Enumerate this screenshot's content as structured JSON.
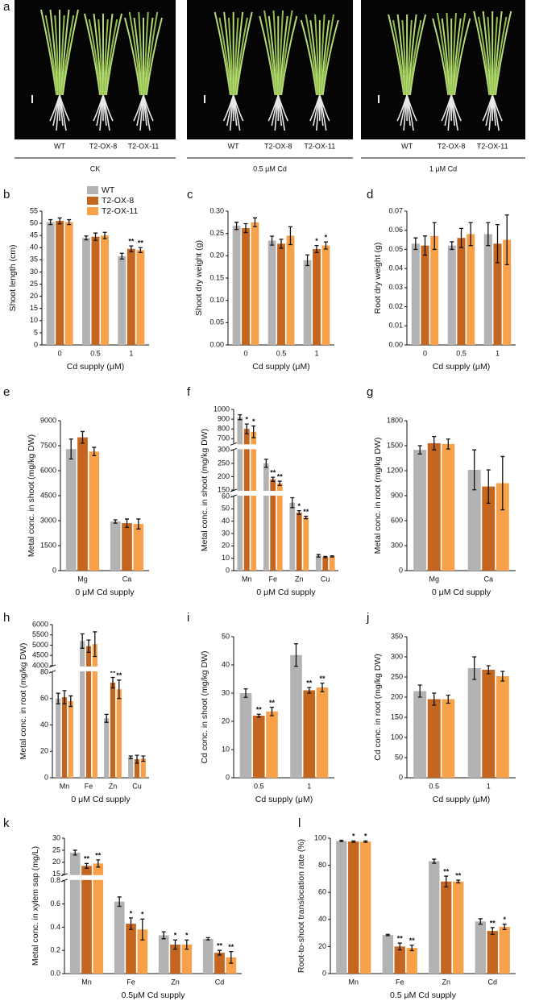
{
  "panel_a": {
    "label": "a",
    "groups": [
      {
        "label": "CK",
        "genotypes": [
          "WT",
          "T2-OX-8",
          "T2-OX-11"
        ]
      },
      {
        "label": "0.5 μM Cd",
        "genotypes": [
          "WT",
          "T2-OX-8",
          "T2-OX-11"
        ]
      },
      {
        "label": "1 μM Cd",
        "genotypes": [
          "WT",
          "T2-OX-8",
          "T2-OX-11"
        ]
      }
    ]
  },
  "chart_data": [
    {
      "panel": "b",
      "type": "bar",
      "ylabel": "Shoot length (cm)",
      "xlabel": "Cd supply (μM)",
      "categories": [
        "0",
        "0.5",
        "1"
      ],
      "legend": true,
      "series": [
        {
          "name": "WT",
          "color": "#b3b3b3",
          "values": [
            50.5,
            44,
            36.5
          ],
          "errors": [
            1,
            0.8,
            1.2
          ]
        },
        {
          "name": "T2-OX-8",
          "color": "#c4661f",
          "values": [
            51,
            44.5,
            39.5
          ],
          "errors": [
            1.2,
            1.5,
            1.2
          ],
          "stars": [
            null,
            null,
            "**"
          ]
        },
        {
          "name": "T2-OX-11",
          "color": "#f7a24b",
          "values": [
            50.5,
            45,
            39
          ],
          "errors": [
            1,
            1.3,
            1
          ],
          "stars": [
            null,
            null,
            "**"
          ]
        }
      ],
      "ylim": [
        0,
        55
      ],
      "yticks": [
        0,
        5,
        10,
        15,
        20,
        25,
        30,
        35,
        40,
        45,
        50,
        55
      ]
    },
    {
      "panel": "c",
      "type": "bar",
      "ylabel": "Shoot dry weight (g)",
      "xlabel": "Cd supply (μM)",
      "categories": [
        "0",
        "0.5",
        "1"
      ],
      "series": [
        {
          "color": "#b3b3b3",
          "values": [
            0.267,
            0.234,
            0.19
          ],
          "errors": [
            0.008,
            0.01,
            0.012
          ]
        },
        {
          "color": "#c4661f",
          "values": [
            0.262,
            0.227,
            0.215
          ],
          "errors": [
            0.01,
            0.01,
            0.008
          ],
          "stars": [
            null,
            null,
            "*"
          ]
        },
        {
          "color": "#f7a24b",
          "values": [
            0.275,
            0.245,
            0.223
          ],
          "errors": [
            0.01,
            0.02,
            0.008
          ],
          "stars": [
            null,
            null,
            "*"
          ]
        }
      ],
      "ylim": [
        0,
        0.3
      ],
      "yticks": [
        {
          "value": 0,
          "label": "0.00"
        },
        {
          "value": 0.05,
          "label": "0.05"
        },
        {
          "value": 0.1,
          "label": "0.10"
        },
        {
          "value": 0.15,
          "label": "0.15"
        },
        {
          "value": 0.2,
          "label": "0.20"
        },
        {
          "value": 0.25,
          "label": "0.25"
        },
        {
          "value": 0.3,
          "label": "0.30"
        }
      ]
    },
    {
      "panel": "d",
      "type": "bar",
      "ylabel": "Root dry weight (g)",
      "xlabel": "Cd supply (μM)",
      "categories": [
        "0",
        "0.5",
        "1"
      ],
      "series": [
        {
          "color": "#b3b3b3",
          "values": [
            0.053,
            0.052,
            0.058
          ],
          "errors": [
            0.003,
            0.002,
            0.006
          ]
        },
        {
          "color": "#c4661f",
          "values": [
            0.052,
            0.056,
            0.053
          ],
          "errors": [
            0.005,
            0.005,
            0.01
          ]
        },
        {
          "color": "#f7a24b",
          "values": [
            0.057,
            0.058,
            0.055
          ],
          "errors": [
            0.007,
            0.006,
            0.013
          ]
        }
      ],
      "ylim": [
        0,
        0.07
      ],
      "yticks": [
        {
          "value": 0,
          "label": "0.00"
        },
        {
          "value": 0.01,
          "label": "0.01"
        },
        {
          "value": 0.02,
          "label": "0.02"
        },
        {
          "value": 0.03,
          "label": "0.03"
        },
        {
          "value": 0.04,
          "label": "0.04"
        },
        {
          "value": 0.05,
          "label": "0.05"
        },
        {
          "value": 0.06,
          "label": "0.06"
        },
        {
          "value": 0.07,
          "label": "0.07"
        }
      ]
    },
    {
      "panel": "e",
      "type": "bar",
      "ylabel": "Metal conc. in shoot (mg/kg DW)",
      "xlabel": "0 μM Cd supply",
      "categories": [
        "Mg",
        "Ca"
      ],
      "series": [
        {
          "color": "#b3b3b3",
          "values": [
            7300,
            2950
          ],
          "errors": [
            600,
            100
          ]
        },
        {
          "color": "#c4661f",
          "values": [
            8000,
            2850
          ],
          "errors": [
            350,
            250
          ]
        },
        {
          "color": "#f7a24b",
          "values": [
            7150,
            2800
          ],
          "errors": [
            250,
            300
          ]
        }
      ],
      "ylim": [
        0,
        9000
      ],
      "yticks": [
        0,
        1500,
        3000,
        4500,
        6000,
        7500,
        9000
      ]
    },
    {
      "panel": "f",
      "type": "bar",
      "ylabel": "Metal conc. in shoot (mg/kg DW)",
      "xlabel": "0 μM Cd supply",
      "categories": [
        "Mn",
        "Fe",
        "Zn",
        "Cu"
      ],
      "series": [
        {
          "color": "#b3b3b3",
          "values": [
            920,
            250,
            55,
            12
          ],
          "errors": [
            25,
            15,
            4,
            1
          ]
        },
        {
          "color": "#c4661f",
          "values": [
            800,
            190,
            47,
            11
          ],
          "errors": [
            50,
            8,
            1.5,
            0.5
          ],
          "stars": [
            "*",
            "**",
            "*",
            null
          ]
        },
        {
          "color": "#f7a24b",
          "values": [
            770,
            175,
            43,
            11.5
          ],
          "errors": [
            60,
            8,
            1,
            0.5
          ],
          "stars": [
            "*",
            "**",
            "**",
            null
          ]
        }
      ],
      "y_segments": [
        {
          "ylim": [
            0,
            60
          ],
          "yticks": [
            0,
            10,
            20,
            30,
            40,
            50,
            60
          ]
        },
        {
          "ylim": [
            150,
            300
          ],
          "yticks": [
            150,
            200,
            250,
            300
          ]
        },
        {
          "ylim": [
            650,
            1000
          ],
          "yticks": [
            700,
            800,
            900,
            1000
          ]
        }
      ]
    },
    {
      "panel": "g",
      "type": "bar",
      "ylabel": "Metal conc. in root (mg/kg DW)",
      "xlabel": "0 μM Cd supply",
      "categories": [
        "Mg",
        "Ca"
      ],
      "series": [
        {
          "color": "#b3b3b3",
          "values": [
            1450,
            1210
          ],
          "errors": [
            50,
            240
          ]
        },
        {
          "color": "#c4661f",
          "values": [
            1530,
            1010
          ],
          "errors": [
            80,
            200
          ]
        },
        {
          "color": "#f7a24b",
          "values": [
            1520,
            1050
          ],
          "errors": [
            60,
            320
          ]
        }
      ],
      "ylim": [
        0,
        1800
      ],
      "yticks": [
        0,
        300,
        600,
        900,
        1200,
        1500,
        1800
      ]
    },
    {
      "panel": "h",
      "type": "bar",
      "ylabel": "Metal conc. in root (mg/kg DW)",
      "xlabel": "0 μM Cd supply",
      "categories": [
        "Mn",
        "Fe",
        "Zn",
        "Cu"
      ],
      "series": [
        {
          "color": "#b3b3b3",
          "values": [
            60,
            5200,
            45,
            15.5
          ],
          "errors": [
            4,
            350,
            3,
            1
          ]
        },
        {
          "color": "#c4661f",
          "values": [
            61,
            4950,
            72,
            14
          ],
          "errors": [
            5,
            300,
            4,
            3
          ],
          "stars": [
            null,
            null,
            "**",
            null
          ]
        },
        {
          "color": "#f7a24b",
          "values": [
            58,
            5050,
            67,
            14.5
          ],
          "errors": [
            4,
            600,
            7,
            2
          ],
          "stars": [
            null,
            null,
            "**",
            null
          ]
        }
      ],
      "y_segments": [
        {
          "ylim": [
            0,
            80
          ],
          "yticks": [
            0,
            20,
            40,
            60,
            80
          ]
        },
        {
          "ylim": [
            4000,
            6000
          ],
          "yticks": [
            4000,
            4500,
            5000,
            5500,
            6000
          ]
        }
      ]
    },
    {
      "panel": "i",
      "type": "bar",
      "ylabel": "Cd conc. in shoot (mg/kg DW)",
      "xlabel": "Cd supply (μM)",
      "categories": [
        "0.5",
        "1"
      ],
      "series": [
        {
          "color": "#b3b3b3",
          "values": [
            30,
            43.5
          ],
          "errors": [
            1.5,
            4
          ]
        },
        {
          "color": "#c4661f",
          "values": [
            22,
            31
          ],
          "errors": [
            0.5,
            1
          ],
          "stars": [
            "**",
            "**"
          ]
        },
        {
          "color": "#f7a24b",
          "values": [
            23.5,
            32
          ],
          "errors": [
            1.5,
            1.5
          ],
          "stars": [
            "**",
            "**"
          ]
        }
      ],
      "ylim": [
        0,
        50
      ],
      "yticks": [
        0,
        10,
        20,
        30,
        40,
        50
      ]
    },
    {
      "panel": "j",
      "type": "bar",
      "ylabel": "Cd conc. in root (mg/kg DW)",
      "xlabel": "Cd supply (μM)",
      "categories": [
        "0.5",
        "1"
      ],
      "series": [
        {
          "color": "#b3b3b3",
          "values": [
            215,
            272
          ],
          "errors": [
            15,
            28
          ]
        },
        {
          "color": "#c4661f",
          "values": [
            195,
            268
          ],
          "errors": [
            15,
            10
          ]
        },
        {
          "color": "#f7a24b",
          "values": [
            195,
            252
          ],
          "errors": [
            10,
            12
          ]
        }
      ],
      "ylim": [
        0,
        350
      ],
      "yticks": [
        0,
        50,
        100,
        150,
        200,
        250,
        300,
        350
      ]
    },
    {
      "panel": "k",
      "type": "bar",
      "ylabel": "Metal conc. in xylem sap (mg/L)",
      "xlabel": "0.5μM Cd supply",
      "categories": [
        "Mn",
        "Fe",
        "Zn",
        "Cd"
      ],
      "series": [
        {
          "color": "#b3b3b3",
          "values": [
            24,
            0.62,
            0.33,
            0.3
          ],
          "errors": [
            1,
            0.04,
            0.03,
            0.01
          ]
        },
        {
          "color": "#c4661f",
          "values": [
            18.5,
            0.43,
            0.25,
            0.18
          ],
          "errors": [
            1,
            0.05,
            0.04,
            0.02
          ],
          "stars": [
            "**",
            "*",
            "*",
            "**"
          ]
        },
        {
          "color": "#f7a24b",
          "values": [
            19.5,
            0.38,
            0.25,
            0.14
          ],
          "errors": [
            1.5,
            0.09,
            0.04,
            0.05
          ],
          "stars": [
            "**",
            "*",
            "*",
            "**"
          ]
        }
      ],
      "y_segments": [
        {
          "ylim": [
            0,
            0.8
          ],
          "yticks": [
            {
              "value": 0,
              "label": "0.0"
            },
            {
              "value": 0.2,
              "label": "0.2"
            },
            {
              "value": 0.4,
              "label": "0.4"
            },
            {
              "value": 0.6,
              "label": "0.6"
            },
            {
              "value": 0.8,
              "label": "0.8"
            }
          ]
        },
        {
          "ylim": [
            15,
            30
          ],
          "yticks": [
            15,
            20,
            25,
            30
          ]
        }
      ]
    },
    {
      "panel": "l",
      "type": "bar",
      "ylabel": "Root-to-shoot translocation rate (%)",
      "xlabel": "0.5 μM Cd supply",
      "categories": [
        "Mn",
        "Fe",
        "Zn",
        "Cd"
      ],
      "series": [
        {
          "color": "#b3b3b3",
          "values": [
            98,
            28.5,
            83,
            38.5
          ],
          "errors": [
            0.5,
            0.5,
            1.5,
            2
          ]
        },
        {
          "color": "#c4661f",
          "values": [
            97.5,
            20,
            68,
            31.5
          ],
          "errors": [
            0.5,
            2.5,
            4,
            2.5
          ],
          "stars": [
            "*",
            "**",
            "**",
            "**"
          ]
        },
        {
          "color": "#f7a24b",
          "values": [
            97.5,
            19,
            68,
            34.5
          ],
          "errors": [
            0.5,
            2,
            1,
            2
          ],
          "stars": [
            "*",
            "**",
            "**",
            "*"
          ]
        }
      ],
      "ylim": [
        0,
        100
      ],
      "yticks": [
        0,
        20,
        40,
        60,
        80,
        100
      ]
    }
  ]
}
